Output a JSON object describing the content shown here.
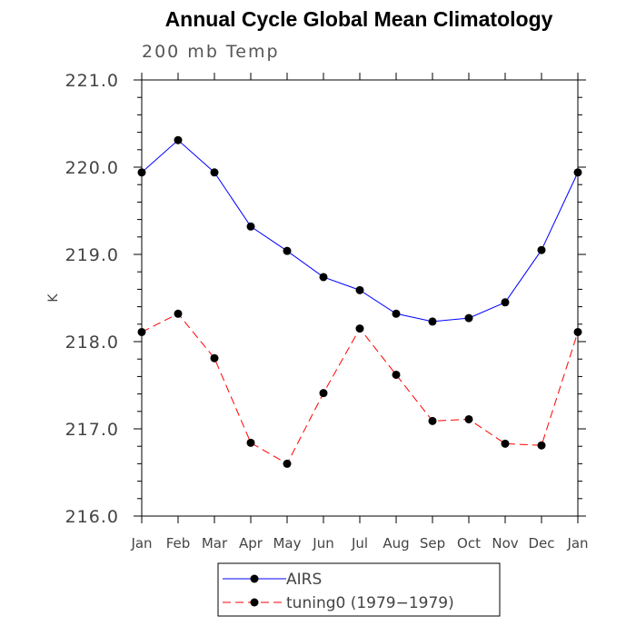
{
  "chart_data": {
    "type": "line",
    "title": "Annual Cycle Global Mean Climatology",
    "subtitle": "200 mb Temp",
    "xlabel": "",
    "ylabel": "K",
    "categories": [
      "Jan",
      "Feb",
      "Mar",
      "Apr",
      "May",
      "Jun",
      "Jul",
      "Aug",
      "Sep",
      "Oct",
      "Nov",
      "Dec",
      "Jan"
    ],
    "ylim": [
      216.0,
      221.0
    ],
    "yticks": [
      "216.0",
      "217.0",
      "218.0",
      "219.0",
      "220.0",
      "221.0"
    ],
    "grid": false,
    "legend_position": "bottom-center",
    "series": [
      {
        "name": "AIRS",
        "color": "#0000ff",
        "line_style": "solid",
        "values": [
          219.94,
          220.31,
          219.94,
          219.32,
          219.04,
          218.74,
          218.59,
          218.32,
          218.23,
          218.27,
          218.45,
          219.05,
          219.94
        ]
      },
      {
        "name": "tuning0 (1979−1979)",
        "color": "#ff0000",
        "line_style": "dashed",
        "values": [
          218.11,
          218.32,
          217.81,
          216.84,
          216.6,
          217.41,
          218.15,
          217.62,
          217.09,
          217.11,
          216.83,
          216.81,
          218.11
        ]
      }
    ]
  }
}
